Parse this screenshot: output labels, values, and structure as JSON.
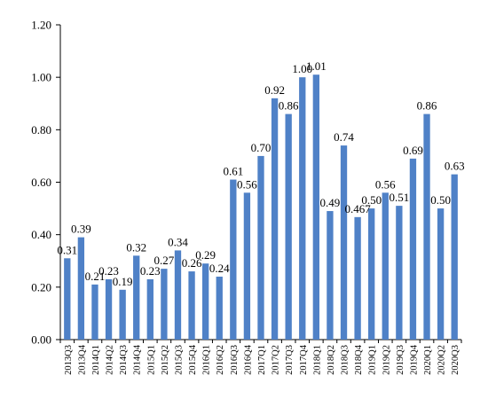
{
  "chart_data": {
    "type": "bar",
    "categories": [
      "2013Q3",
      "2013Q4",
      "2014Q1",
      "2014Q2",
      "2014Q3",
      "2014Q4",
      "2015Q1",
      "2015Q2",
      "2015Q3",
      "2015Q4",
      "2016Q1",
      "2016Q2",
      "2016Q3",
      "2016Q4",
      "2017Q1",
      "2017Q2",
      "2017Q3",
      "2017Q4",
      "2018Q1",
      "2018Q2",
      "2018Q3",
      "2018Q4",
      "2019Q1",
      "2019Q2",
      "2019Q3",
      "2019Q4",
      "2020Q1",
      "2020Q2",
      "2020Q3"
    ],
    "values": [
      0.31,
      0.39,
      0.21,
      0.23,
      0.19,
      0.32,
      0.23,
      0.27,
      0.34,
      0.26,
      0.29,
      0.24,
      0.61,
      0.56,
      0.7,
      0.92,
      0.86,
      1.0,
      1.01,
      0.49,
      0.74,
      0.467,
      0.5,
      0.56,
      0.51,
      0.69,
      0.86,
      0.5,
      0.63
    ],
    "data_labels": [
      "0.31",
      "0.39",
      "0.21",
      "0.23",
      "0.19",
      "0.32",
      "0.23",
      "0.27",
      "0.34",
      "0.26",
      "0.29",
      "0.24",
      "0.61",
      "0.56",
      "0.70",
      "0.92",
      "0.86",
      "1.00",
      "1.01",
      "0.49",
      "0.74",
      "0.467",
      "0.50",
      "0.56",
      "0.51",
      "0.69",
      "0.86",
      "0.50",
      "0.63"
    ],
    "y_ticks": [
      "0.00",
      "0.20",
      "0.40",
      "0.60",
      "0.80",
      "1.00",
      "1.20"
    ],
    "ylim": [
      0,
      1.2
    ],
    "title": "",
    "xlabel": "",
    "ylabel": "",
    "legend": false,
    "grid": false,
    "bar_color": "#4f81c7"
  }
}
